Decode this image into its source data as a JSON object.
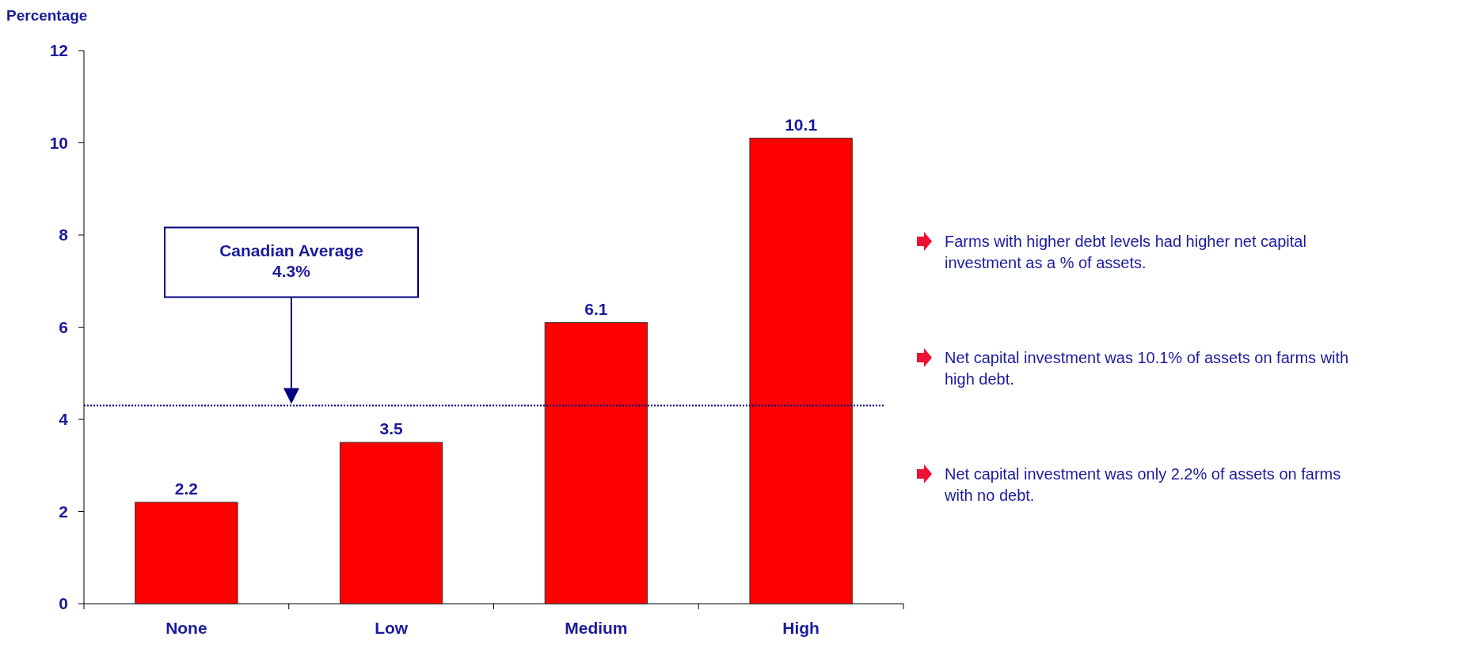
{
  "chart_data": {
    "type": "bar",
    "ylabel": "Percentage",
    "categories": [
      "None",
      "Low",
      "Medium",
      "High"
    ],
    "values": [
      2.2,
      3.5,
      6.1,
      10.1
    ],
    "color": "#ff0000",
    "ylim": [
      0,
      12
    ],
    "yticks": [
      0,
      2,
      4,
      6,
      8,
      10,
      12
    ],
    "data_labels": true,
    "ref_lines": [
      {
        "axis": "y",
        "value": 4.3,
        "label": "Canadian Average\n4.3%",
        "color": "#000080",
        "line_style": "dotted"
      }
    ],
    "annotations": [
      "Farms with higher debt levels had higher net capital investment as a % of assets.",
      "Net capital investment was 10.1% of assets on farms with high debt.",
      "Net capital investment was only 2.2% of assets on farms with no debt."
    ]
  }
}
